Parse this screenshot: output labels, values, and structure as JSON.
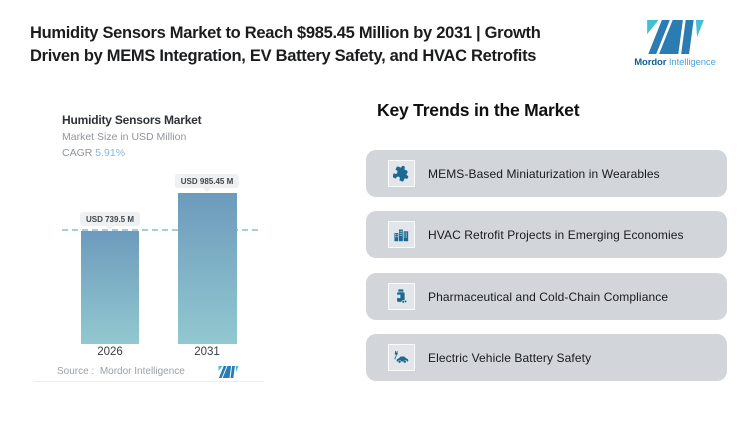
{
  "header": {
    "headline_lines": [
      "Humidity Sensors Market to Reach $985.45 Million by 2031 | Growth",
      "Driven by MEMS Integration, EV Battery Safety, and HVAC Retrofits"
    ],
    "brand": {
      "word1": "Mordor",
      "word2": "Intelligence"
    }
  },
  "chart_data": {
    "type": "bar",
    "title": "Humidity Sensors Market",
    "subtitle": "Market Size in USD Million",
    "cagr_label": "CAGR",
    "cagr_value": "5.91%",
    "categories": [
      "2026",
      "2031"
    ],
    "values": [
      739.5,
      985.45
    ],
    "data_labels": [
      "USD 739.5 M",
      "USD 985.45 M"
    ],
    "unit": "USD Million",
    "ylim": [
      0,
      985.45
    ],
    "reference_line_value": 739.5,
    "grid": false,
    "legend": "none",
    "source_label": "Source :",
    "source_name": "Mordor Intelligence"
  },
  "trends": {
    "heading": "Key Trends in the Market",
    "items": [
      {
        "icon": "puzzle-icon",
        "label": "MEMS-Based Miniaturization in Wearables"
      },
      {
        "icon": "buildings-icon",
        "label": "HVAC Retrofit Projects in Emerging Economies"
      },
      {
        "icon": "medicine-bottle-icon",
        "label": "Pharmaceutical and Cold-Chain Compliance"
      },
      {
        "icon": "electric-car-icon",
        "label": "Electric Vehicle Battery Safety"
      }
    ]
  },
  "colors": {
    "brand_blue": "#2b7cb3",
    "brand_teal": "#3fc1d3",
    "bar_gradient_top": "#6d9bbc",
    "bar_gradient_bottom": "#92c8d0",
    "dashed_line": "#a9cbdf",
    "cagr_blue": "#84b8da",
    "card_bg": "#d2d6db",
    "icon_blue": "#1d6990"
  }
}
